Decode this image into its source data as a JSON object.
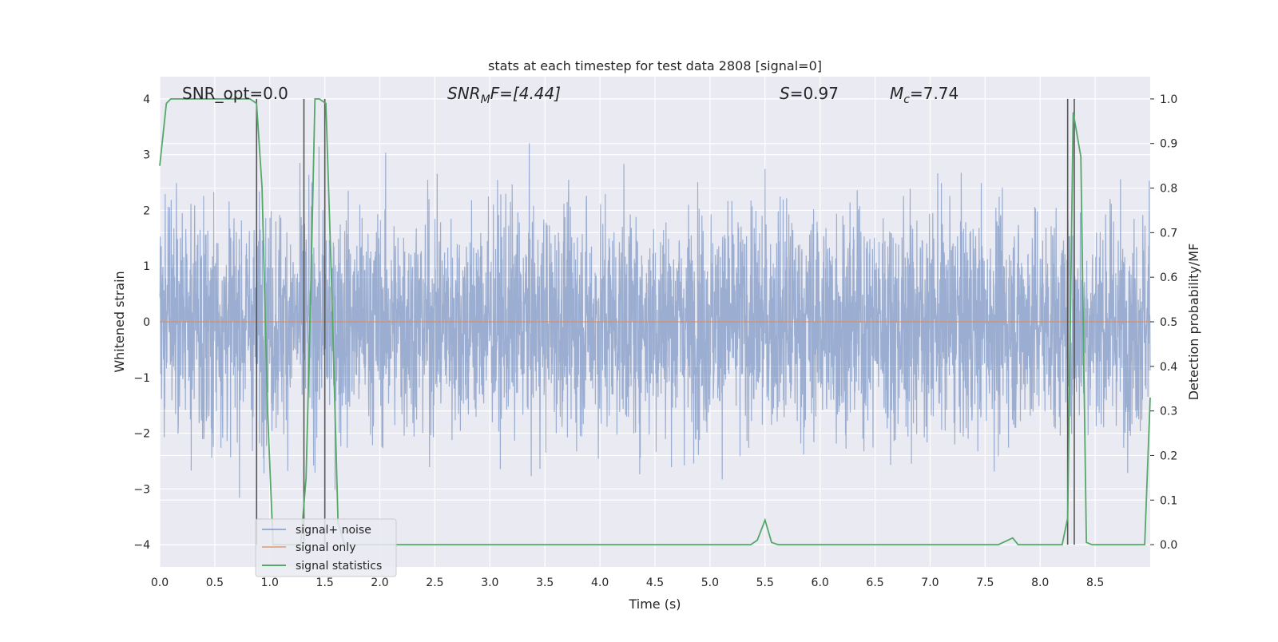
{
  "chart_data": {
    "type": "line",
    "title": "stats at each timestep for test data 2808 [signal=0]",
    "xlabel": "Time (s)",
    "ylabel_left": "Whitened strain",
    "ylabel_right": "Detection probability/MF",
    "xlim": [
      0.0,
      9.0
    ],
    "ylim_left": [
      -4.4,
      4.4
    ],
    "ylim_right": [
      -0.05,
      1.05
    ],
    "xticks": [
      "0.0",
      "0.5",
      "1.0",
      "1.5",
      "2.0",
      "2.5",
      "3.0",
      "3.5",
      "4.0",
      "4.5",
      "5.0",
      "5.5",
      "6.0",
      "6.5",
      "7.0",
      "7.5",
      "8.0",
      "8.5"
    ],
    "xtick_values": [
      0.0,
      0.5,
      1.0,
      1.5,
      2.0,
      2.5,
      3.0,
      3.5,
      4.0,
      4.5,
      5.0,
      5.5,
      6.0,
      6.5,
      7.0,
      7.5,
      8.0,
      8.5
    ],
    "yticks_left": [
      "−4",
      "−3",
      "−2",
      "−1",
      "0",
      "1",
      "2",
      "3",
      "4"
    ],
    "ytick_values_left": [
      -4,
      -3,
      -2,
      -1,
      0,
      1,
      2,
      3,
      4
    ],
    "yticks_right": [
      "0.0",
      "0.1",
      "0.2",
      "0.3",
      "0.4",
      "0.5",
      "0.6",
      "0.7",
      "0.8",
      "0.9",
      "1.0"
    ],
    "ytick_values_right": [
      0.0,
      0.1,
      0.2,
      0.3,
      0.4,
      0.5,
      0.6,
      0.7,
      0.8,
      0.9,
      1.0
    ],
    "grid": true,
    "legend_position": "lower-left",
    "annotations": {
      "snr_opt": "SNR_opt=0.0",
      "snr_mf_main": "SNR",
      "snr_mf_sub": "M",
      "snr_mf_rest": "F=[4.44]",
      "s_main": "S",
      "s_rest": "=0.97",
      "mc_main": "M",
      "mc_sub": "c",
      "mc_rest": "=7.74"
    },
    "series": [
      {
        "name": "signal+ noise",
        "axis": "left",
        "color": "#4c72b0",
        "style": "noise",
        "range": [
          -4.0,
          4.0
        ],
        "std": 1.0,
        "seed": 2808
      },
      {
        "name": "signal only",
        "axis": "left",
        "color": "#dd8452",
        "x": [
          0.0,
          9.0
        ],
        "y": [
          0.0,
          0.0
        ]
      },
      {
        "name": "signal statistics",
        "axis": "right",
        "color": "#55a868",
        "x": [
          0.0,
          0.06,
          0.1,
          0.15,
          0.82,
          0.88,
          0.93,
          0.98,
          1.03,
          1.28,
          1.33,
          1.37,
          1.41,
          1.45,
          1.51,
          1.56,
          1.62,
          1.68,
          5.37,
          5.43,
          5.5,
          5.56,
          5.62,
          7.62,
          7.75,
          7.8,
          8.2,
          8.25,
          8.3,
          8.37,
          8.42,
          8.47,
          8.95,
          9.0
        ],
        "y": [
          0.85,
          0.99,
          1.0,
          1.0,
          1.0,
          0.99,
          0.8,
          0.3,
          0.0,
          0.0,
          0.15,
          0.55,
          1.0,
          1.0,
          0.99,
          0.6,
          0.05,
          0.0,
          0.0,
          0.01,
          0.055,
          0.005,
          0.0,
          0.0,
          0.015,
          0.0,
          0.0,
          0.06,
          0.97,
          0.87,
          0.005,
          0.0,
          0.0,
          0.33
        ]
      }
    ],
    "vlines": [
      0.88,
      1.31,
      1.5,
      8.25,
      8.31
    ]
  }
}
